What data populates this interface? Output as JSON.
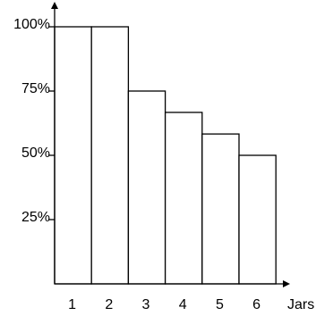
{
  "chart_data": {
    "type": "bar",
    "title": "",
    "xlabel": "Jars",
    "ylabel": "",
    "categories": [
      "1",
      "2",
      "3",
      "4",
      "5",
      "6"
    ],
    "values": [
      100,
      100,
      75,
      66.7,
      58.3,
      50
    ],
    "y_unit": "%",
    "ylim": [
      0,
      100
    ],
    "yticks": [
      {
        "value": 25,
        "label": "25%"
      },
      {
        "value": 50,
        "label": "50%"
      },
      {
        "value": 75,
        "label": "75%"
      },
      {
        "value": 100,
        "label": "100%"
      }
    ],
    "grid": false,
    "legend": "none",
    "bar_fill": "#ffffff",
    "bar_stroke": "#000000",
    "axis_color": "#000000"
  }
}
